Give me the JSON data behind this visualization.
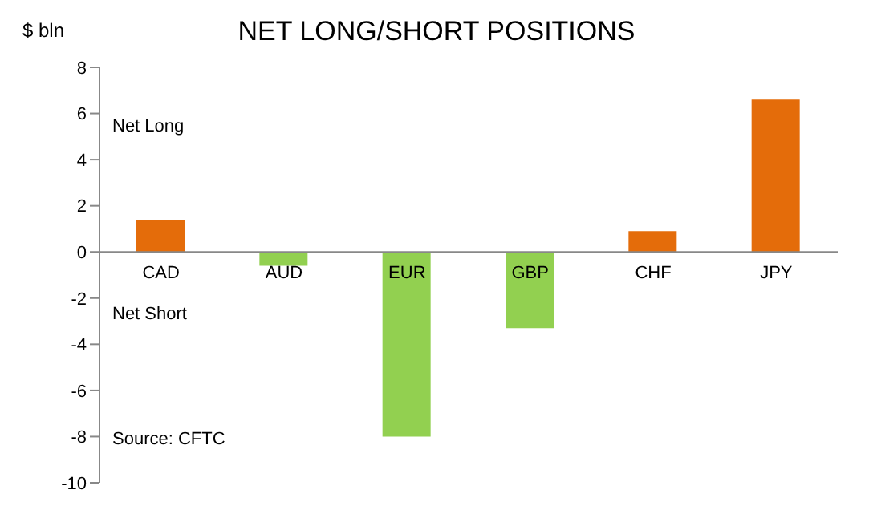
{
  "chart_data": {
    "type": "bar",
    "title": "NET LONG/SHORT POSITIONS",
    "ylabel": "$ bln",
    "categories": [
      "CAD",
      "AUD",
      "EUR",
      "GBP",
      "CHF",
      "JPY"
    ],
    "values": [
      1.4,
      -0.6,
      -8.0,
      -3.3,
      0.9,
      6.6
    ],
    "colors": [
      "#e46c0a",
      "#92d050",
      "#92d050",
      "#92d050",
      "#e46c0a",
      "#e46c0a"
    ],
    "ylim": [
      -10,
      8
    ],
    "yticks": [
      -10,
      -8,
      -6,
      -4,
      -2,
      0,
      2,
      4,
      6,
      8
    ],
    "annotations": [
      "Net Long",
      "Net Short",
      "Source: CFTC"
    ]
  }
}
